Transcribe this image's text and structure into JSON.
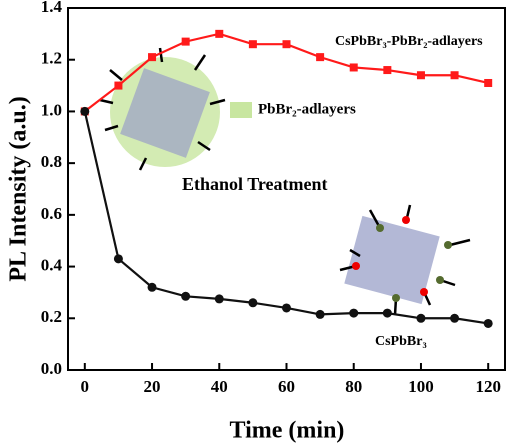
{
  "chart_data": {
    "type": "line",
    "x_label": "Time (min)",
    "y_label": "PL Intensity (a.u.)",
    "x": [
      0,
      10,
      20,
      30,
      40,
      50,
      60,
      70,
      80,
      90,
      100,
      110,
      120
    ],
    "series": [
      {
        "name": "CsPbBr₃-PbBr₂-adlayers",
        "color": "#ff1a1a",
        "marker": "square",
        "values": [
          1.0,
          1.1,
          1.21,
          1.27,
          1.3,
          1.26,
          1.26,
          1.21,
          1.17,
          1.16,
          1.14,
          1.14,
          1.11
        ]
      },
      {
        "name": "CsPbBr₃",
        "color": "#111111",
        "marker": "circle",
        "values": [
          1.0,
          0.43,
          0.32,
          0.285,
          0.275,
          0.26,
          0.24,
          0.215,
          0.22,
          0.22,
          0.2,
          0.2,
          0.18
        ]
      }
    ],
    "annotations": [
      "PbBr₂-adlayers",
      "Ethanol Treatment"
    ],
    "xlim": [
      -5,
      125
    ],
    "xticks": [
      0,
      20,
      40,
      60,
      80,
      100,
      120
    ],
    "ylim": [
      0,
      1.4
    ],
    "yticks": [
      {
        "value": 0,
        "label": "0.0"
      },
      0.2,
      0.4,
      0.6,
      0.8,
      {
        "value": 1,
        "label": "1.0"
      },
      1.2,
      1.4
    ],
    "grid": false
  }
}
